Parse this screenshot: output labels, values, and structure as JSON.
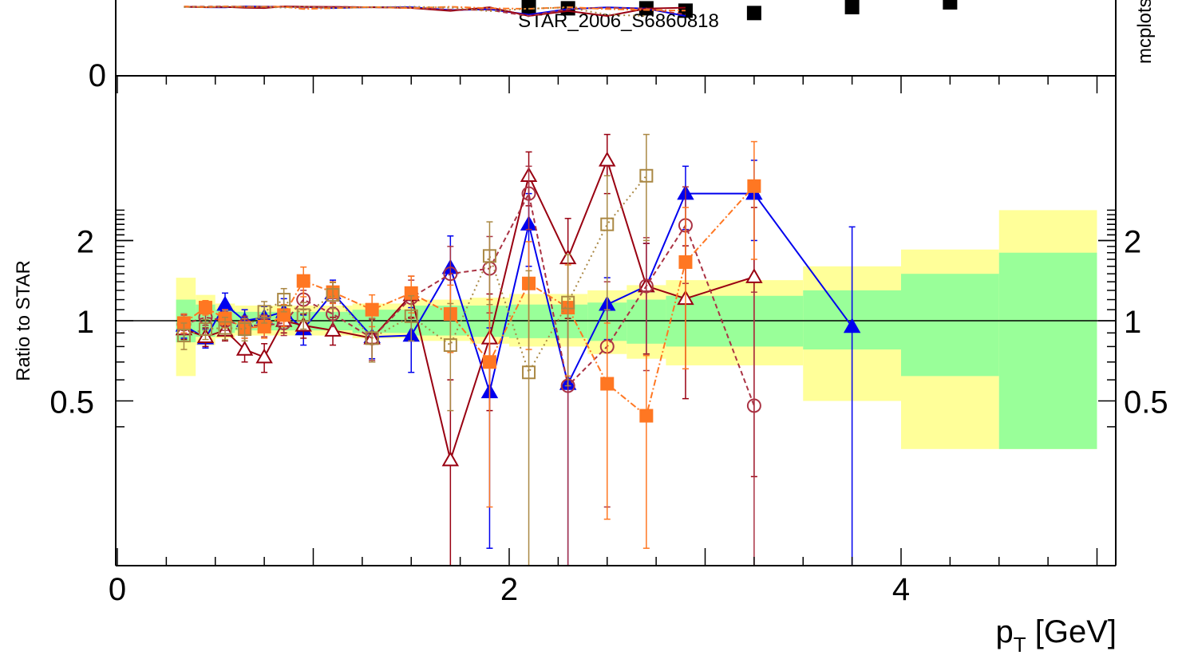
{
  "chart_data": {
    "type": "line",
    "top_panel": {
      "y_tick_labels": [
        "0"
      ],
      "watermark": "STAR_2006_S6860818",
      "side_text": "mcplots",
      "markers": [
        {
          "series": "STAR",
          "x": 2.1,
          "y": 2.9
        },
        {
          "series": "STAR",
          "x": 2.3,
          "y": 2.85
        },
        {
          "series": "STAR",
          "x": 2.7,
          "y": 2.85
        },
        {
          "series": "STAR",
          "x": 2.9,
          "y": 2.75
        },
        {
          "series": "STAR",
          "x": 3.25,
          "y": 2.65
        },
        {
          "series": "STAR",
          "x": 3.75,
          "y": 2.9
        },
        {
          "series": "STAR",
          "x": 4.25,
          "y": 3.1
        }
      ]
    },
    "ratio_panel": {
      "ylabel": "Ratio to STAR",
      "xlabel": "p_T [GeV]",
      "x_tick_labels": [
        "0",
        "2",
        "4"
      ],
      "y_tick_labels": [
        "0.5",
        "1",
        "2"
      ],
      "xlim": [
        0,
        5.05
      ],
      "ylim": [
        0.33,
        2.7
      ],
      "yscale": "log",
      "reference_line": 1,
      "bands": [
        {
          "x0": 0.3,
          "x1": 0.4,
          "inner": [
            0.83,
            1.2
          ],
          "outer": [
            0.62,
            1.45
          ]
        },
        {
          "x0": 0.4,
          "x1": 0.5,
          "inner": [
            0.87,
            1.15
          ],
          "outer": [
            0.81,
            1.25
          ]
        },
        {
          "x0": 0.5,
          "x1": 0.6,
          "inner": [
            0.9,
            1.1
          ],
          "outer": [
            0.86,
            1.16
          ]
        },
        {
          "x0": 0.6,
          "x1": 1.2,
          "inner": [
            0.92,
            1.08
          ],
          "outer": [
            0.88,
            1.14
          ]
        },
        {
          "x0": 1.2,
          "x1": 1.5,
          "inner": [
            0.9,
            1.1
          ],
          "outer": [
            0.86,
            1.16
          ]
        },
        {
          "x0": 1.5,
          "x1": 1.8,
          "inner": [
            0.88,
            1.14
          ],
          "outer": [
            0.84,
            1.2
          ]
        },
        {
          "x0": 1.8,
          "x1": 2.0,
          "inner": [
            0.87,
            1.14
          ],
          "outer": [
            0.82,
            1.22
          ]
        },
        {
          "x0": 2.0,
          "x1": 2.4,
          "inner": [
            0.86,
            1.15
          ],
          "outer": [
            0.8,
            1.26
          ]
        },
        {
          "x0": 2.4,
          "x1": 2.6,
          "inner": [
            0.84,
            1.17
          ],
          "outer": [
            0.75,
            1.3
          ]
        },
        {
          "x0": 2.6,
          "x1": 2.8,
          "inner": [
            0.82,
            1.2
          ],
          "outer": [
            0.72,
            1.36
          ]
        },
        {
          "x0": 2.8,
          "x1": 3.5,
          "inner": [
            0.8,
            1.24
          ],
          "outer": [
            0.68,
            1.42
          ]
        },
        {
          "x0": 3.5,
          "x1": 4.0,
          "inner": [
            0.78,
            1.3
          ],
          "outer": [
            0.5,
            1.6
          ]
        },
        {
          "x0": 4.0,
          "x1": 4.5,
          "inner": [
            0.62,
            1.5
          ],
          "outer": [
            0.33,
            1.85
          ]
        },
        {
          "x0": 4.5,
          "x1": 5.0,
          "inner": [
            0.33,
            1.8
          ],
          "outer": [
            0.33,
            2.6
          ]
        }
      ],
      "series": [
        {
          "color": "#0000ee",
          "marker": "triangle-filled",
          "dash": "",
          "points": [
            [
              0.34,
              0.96
            ],
            [
              0.45,
              0.86
            ],
            [
              0.55,
              1.15
            ],
            [
              0.65,
              1.0
            ],
            [
              0.75,
              1.03
            ],
            [
              0.85,
              1.08
            ],
            [
              0.95,
              0.93
            ],
            [
              1.1,
              1.27
            ],
            [
              1.3,
              0.87
            ],
            [
              1.5,
              0.88
            ],
            [
              1.7,
              1.58
            ],
            [
              1.9,
              0.54
            ],
            [
              2.1,
              2.3
            ],
            [
              2.3,
              0.58
            ],
            [
              2.5,
              1.15
            ],
            [
              2.7,
              1.35
            ],
            [
              2.9,
              3.0
            ],
            [
              3.25,
              3.0
            ],
            [
              3.75,
              0.95
            ]
          ],
          "errors": [
            0.1,
            0.07,
            0.12,
            0.1,
            0.1,
            0.13,
            0.12,
            0.15,
            0.15,
            0.24,
            0.5,
            0.4,
            0.7,
            0.5,
            0.3,
            0.6,
            0.8,
            1.0,
            1.3
          ]
        },
        {
          "color": "#990011",
          "marker": "triangle-open",
          "dash": "",
          "points": [
            [
              0.34,
              0.93
            ],
            [
              0.45,
              0.87
            ],
            [
              0.55,
              0.92
            ],
            [
              0.65,
              0.78
            ],
            [
              0.75,
              0.73
            ],
            [
              0.85,
              1.0
            ],
            [
              0.95,
              0.96
            ],
            [
              1.1,
              0.92
            ],
            [
              1.3,
              0.86
            ],
            [
              1.5,
              1.25
            ],
            [
              1.7,
              0.3
            ],
            [
              1.9,
              0.86
            ],
            [
              2.1,
              3.5
            ],
            [
              2.3,
              1.72
            ],
            [
              2.5,
              4.0
            ],
            [
              2.7,
              1.35
            ],
            [
              2.9,
              1.21
            ],
            [
              3.25,
              1.46
            ]
          ],
          "errors": [
            0.08,
            0.07,
            0.08,
            0.08,
            0.09,
            0.1,
            0.1,
            0.11,
            0.16,
            0.22,
            0.3,
            0.4,
            0.8,
            0.7,
            1.0,
            0.6,
            0.7,
            1.2
          ]
        },
        {
          "color": "#aa3344",
          "marker": "circle-open",
          "dash": "6,4",
          "points": [
            [
              0.34,
              0.97
            ],
            [
              0.45,
              1.03
            ],
            [
              0.55,
              1.0
            ],
            [
              0.65,
              0.96
            ],
            [
              0.75,
              0.96
            ],
            [
              0.85,
              0.98
            ],
            [
              0.95,
              1.2
            ],
            [
              1.1,
              1.06
            ],
            [
              1.3,
              0.86
            ],
            [
              1.5,
              1.22
            ],
            [
              1.7,
              1.5
            ],
            [
              1.9,
              1.57
            ],
            [
              2.1,
              3.0
            ],
            [
              2.3,
              0.57
            ],
            [
              2.5,
              0.8
            ],
            [
              2.7,
              1.35
            ],
            [
              2.9,
              2.28
            ],
            [
              3.25,
              0.48
            ]
          ],
          "errors": [
            0.08,
            0.07,
            0.08,
            0.08,
            0.09,
            0.1,
            0.1,
            0.11,
            0.15,
            0.2,
            0.4,
            0.5,
            0.8,
            0.5,
            0.6,
            0.7,
            0.9,
            0.8
          ]
        },
        {
          "color": "#ff7722",
          "marker": "square-filled",
          "dash": "8,3,2,3",
          "points": [
            [
              0.34,
              0.98
            ],
            [
              0.45,
              1.12
            ],
            [
              0.55,
              1.02
            ],
            [
              0.65,
              0.94
            ],
            [
              0.75,
              0.95
            ],
            [
              0.85,
              1.05
            ],
            [
              0.95,
              1.41
            ],
            [
              1.1,
              1.28
            ],
            [
              1.3,
              1.1
            ],
            [
              1.5,
              1.27
            ],
            [
              1.7,
              1.06
            ],
            [
              1.9,
              0.7
            ],
            [
              2.1,
              1.38
            ],
            [
              2.3,
              1.12
            ],
            [
              2.5,
              0.58
            ],
            [
              2.7,
              0.44
            ],
            [
              2.9,
              1.66
            ],
            [
              3.25,
              3.2
            ]
          ],
          "errors": [
            0.08,
            0.07,
            0.08,
            0.08,
            0.09,
            0.1,
            0.18,
            0.12,
            0.15,
            0.2,
            0.3,
            0.5,
            0.6,
            0.5,
            0.4,
            0.3,
            1.0,
            1.5
          ]
        },
        {
          "color": "#aa8844",
          "marker": "square-open",
          "dash": "2,4",
          "points": [
            [
              0.34,
              0.88
            ],
            [
              0.45,
              0.93
            ],
            [
              0.55,
              0.94
            ],
            [
              0.65,
              0.93
            ],
            [
              0.75,
              1.08
            ],
            [
              0.85,
              1.2
            ],
            [
              0.95,
              1.05
            ],
            [
              1.1,
              1.25
            ],
            [
              1.3,
              0.86
            ],
            [
              1.5,
              1.04
            ],
            [
              1.7,
              0.81
            ],
            [
              1.9,
              1.75
            ],
            [
              2.1,
              0.64
            ],
            [
              2.3,
              1.17
            ],
            [
              2.5,
              2.3
            ],
            [
              2.7,
              3.5
            ]
          ],
          "errors": [
            0.1,
            0.08,
            0.09,
            0.09,
            0.1,
            0.12,
            0.12,
            0.14,
            0.16,
            0.2,
            0.35,
            0.6,
            0.9,
            0.6,
            1.2,
            1.5
          ]
        }
      ]
    }
  },
  "colors": {
    "band_inner": "#99ff99",
    "band_outer": "#ffff99",
    "watermark": "#999999"
  }
}
